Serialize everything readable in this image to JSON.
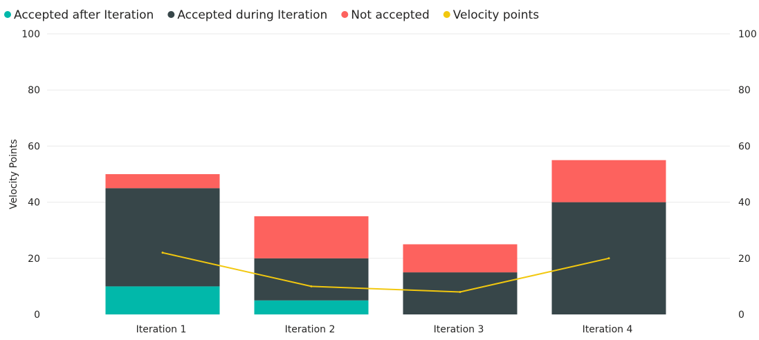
{
  "chart_data": {
    "type": "bar",
    "stacked": true,
    "title": "",
    "xlabel": "",
    "ylabel": "Velocity Points",
    "ylim": [
      0,
      100
    ],
    "y2lim": [
      0,
      100
    ],
    "yticks": [
      0,
      20,
      40,
      60,
      80,
      100
    ],
    "grid": true,
    "legend_position": "top-left",
    "categories": [
      "Iteration 1",
      "Iteration 2",
      "Iteration 3",
      "Iteration 4"
    ],
    "series": [
      {
        "name": "Accepted after Iteration",
        "type": "bar",
        "color": "#01B8AA",
        "values": [
          10,
          5,
          0,
          0
        ]
      },
      {
        "name": "Accepted during Iteration",
        "type": "bar",
        "color": "#374649",
        "values": [
          35,
          15,
          15,
          40
        ]
      },
      {
        "name": "Not accepted",
        "type": "bar",
        "color": "#FD625E",
        "values": [
          5,
          15,
          10,
          15
        ]
      },
      {
        "name": "Velocity points",
        "type": "line",
        "color": "#F2C80F",
        "values": [
          22,
          10,
          8,
          20
        ]
      }
    ]
  }
}
